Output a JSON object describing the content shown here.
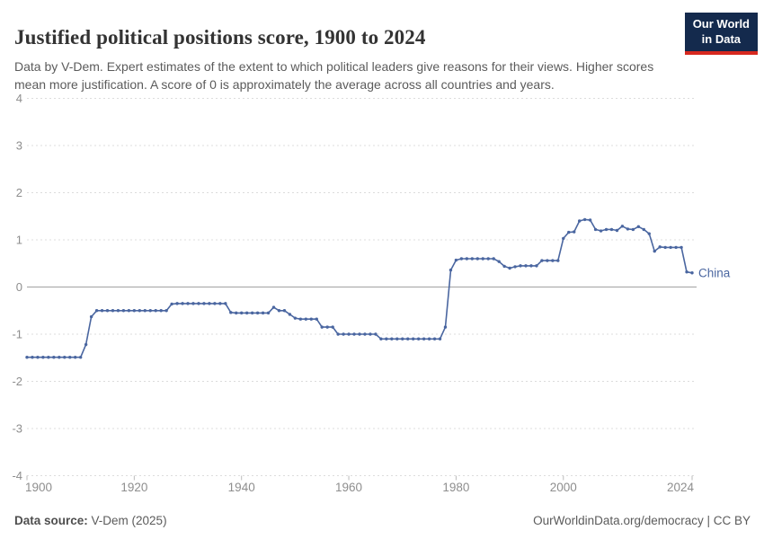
{
  "header": {
    "title": "Justified political positions score, 1900 to 2024",
    "subtitle": "Data by V-Dem. Expert estimates of the extent to which political leaders give reasons for their views. Higher scores mean more justification. A score of 0 is approximately the average across all countries and years."
  },
  "logo": {
    "line1": "Our World",
    "line2": "in Data",
    "bg_color": "#142a4d",
    "stripe_color": "#d7281f"
  },
  "chart_data": {
    "type": "line",
    "title": "Justified political positions score, 1900 to 2024",
    "xlabel": "",
    "ylabel": "",
    "xlim": [
      1900,
      2024
    ],
    "ylim": [
      -4,
      4
    ],
    "grid": "dashed-horizontal",
    "zero_line": true,
    "yticks": [
      4,
      3,
      2,
      1,
      0,
      -1,
      -2,
      -3,
      -4
    ],
    "xticks": [
      1900,
      1920,
      1940,
      1960,
      1980,
      2000,
      2024
    ],
    "legend_position": "end-of-line-label",
    "series": [
      {
        "name": "China",
        "color": "#4a66a0",
        "x_start": 1900,
        "x_step": 1,
        "values": [
          -1.49,
          -1.49,
          -1.49,
          -1.49,
          -1.49,
          -1.49,
          -1.49,
          -1.49,
          -1.49,
          -1.49,
          -1.49,
          -1.22,
          -0.63,
          -0.5,
          -0.5,
          -0.5,
          -0.5,
          -0.5,
          -0.5,
          -0.5,
          -0.5,
          -0.5,
          -0.5,
          -0.5,
          -0.5,
          -0.5,
          -0.5,
          -0.36,
          -0.35,
          -0.35,
          -0.35,
          -0.35,
          -0.35,
          -0.35,
          -0.35,
          -0.35,
          -0.35,
          -0.35,
          -0.54,
          -0.55,
          -0.55,
          -0.55,
          -0.55,
          -0.55,
          -0.55,
          -0.55,
          -0.43,
          -0.5,
          -0.5,
          -0.58,
          -0.66,
          -0.68,
          -0.68,
          -0.68,
          -0.68,
          -0.85,
          -0.85,
          -0.85,
          -1.0,
          -1.0,
          -1.0,
          -1.0,
          -1.0,
          -1.0,
          -1.0,
          -1.0,
          -1.1,
          -1.1,
          -1.1,
          -1.1,
          -1.1,
          -1.1,
          -1.1,
          -1.1,
          -1.1,
          -1.1,
          -1.1,
          -1.1,
          -0.85,
          0.36,
          0.57,
          0.6,
          0.6,
          0.6,
          0.6,
          0.6,
          0.6,
          0.6,
          0.54,
          0.44,
          0.4,
          0.43,
          0.45,
          0.45,
          0.45,
          0.45,
          0.56,
          0.56,
          0.56,
          0.56,
          1.03,
          1.16,
          1.17,
          1.4,
          1.43,
          1.42,
          1.22,
          1.19,
          1.22,
          1.22,
          1.2,
          1.29,
          1.23,
          1.22,
          1.28,
          1.22,
          1.13,
          0.76,
          0.85,
          0.84,
          0.84,
          0.84,
          0.84,
          0.32,
          0.3
        ]
      }
    ],
    "colors": {
      "gridline": "#dcdcdc",
      "zero_line": "#a1a1a1",
      "tick_label": "#8e8e8e",
      "tick_mark": "#bbbbbb"
    }
  },
  "footer": {
    "source_label": "Data source:",
    "source_value": " V-Dem (2025)",
    "credit": "OurWorldinData.org/democracy | CC BY"
  }
}
